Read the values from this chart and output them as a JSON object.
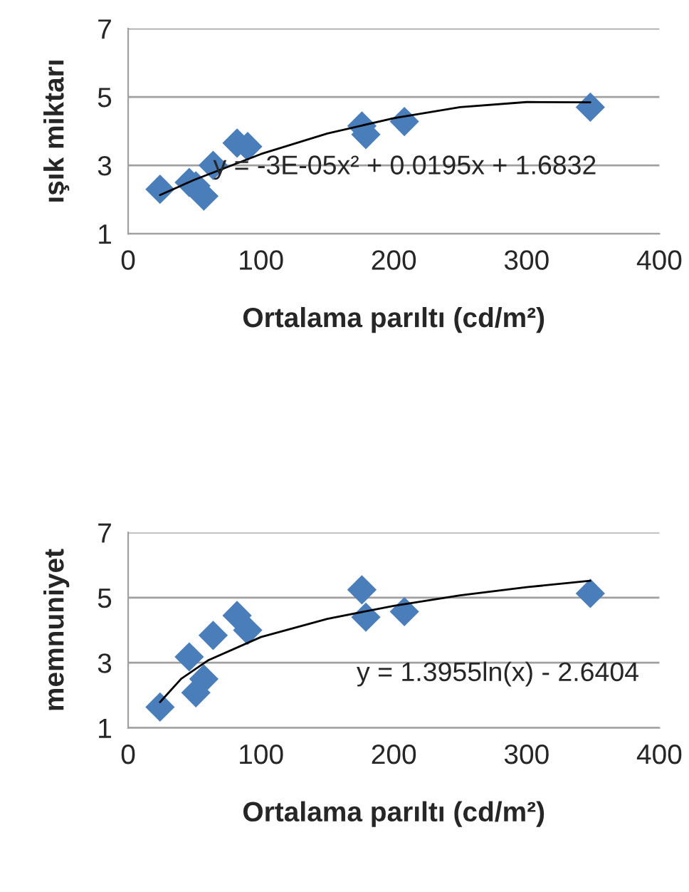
{
  "chart_data": [
    {
      "type": "scatter",
      "xlabel": "Ortalama parıltı (cd/m²)",
      "ylabel": "ışık miktarı",
      "annotations": [
        "y = -3E-05x² + 0.0195x + 1.6832"
      ],
      "xlim": [
        0,
        400
      ],
      "xticks": [
        0,
        100,
        200,
        300,
        400
      ],
      "ylim": [
        1,
        7
      ],
      "yticks": [
        1,
        3,
        5,
        7
      ],
      "grid": "y",
      "series": [
        {
          "marker": "diamond",
          "color": "#4a7ebb",
          "x": [
            24,
            46,
            51,
            57,
            64,
            82,
            90,
            176,
            179,
            208,
            348
          ],
          "values": [
            2.3,
            2.5,
            2.4,
            2.1,
            3.0,
            3.65,
            3.55,
            4.15,
            3.9,
            4.28,
            4.7
          ]
        },
        {
          "type": "line",
          "color": "#000000",
          "x": [
            24,
            50,
            100,
            150,
            200,
            250,
            300,
            348
          ],
          "values": [
            2.13,
            2.58,
            3.33,
            3.93,
            4.38,
            4.7,
            4.85,
            4.84
          ]
        }
      ]
    },
    {
      "type": "scatter",
      "xlabel": "Ortalama parıltı (cd/m²)",
      "ylabel": "memnuniyet",
      "annotations": [
        "y = 1.3955ln(x) - 2.6404"
      ],
      "xlim": [
        0,
        400
      ],
      "xticks": [
        0,
        100,
        200,
        300,
        400
      ],
      "ylim": [
        1,
        7
      ],
      "yticks": [
        1,
        3,
        5,
        7
      ],
      "grid": "y",
      "series": [
        {
          "marker": "diamond",
          "color": "#4a7ebb",
          "x": [
            24,
            46,
            51,
            57,
            64,
            82,
            90,
            176,
            179,
            208,
            348
          ],
          "values": [
            1.64,
            3.18,
            2.08,
            2.5,
            3.84,
            4.45,
            4.0,
            5.24,
            4.4,
            4.57,
            5.13
          ]
        },
        {
          "type": "line",
          "color": "#000000",
          "x": [
            24,
            40,
            60,
            100,
            150,
            200,
            250,
            300,
            348
          ],
          "values": [
            1.79,
            2.51,
            3.07,
            3.79,
            4.35,
            4.75,
            5.07,
            5.32,
            5.52
          ]
        }
      ]
    }
  ]
}
